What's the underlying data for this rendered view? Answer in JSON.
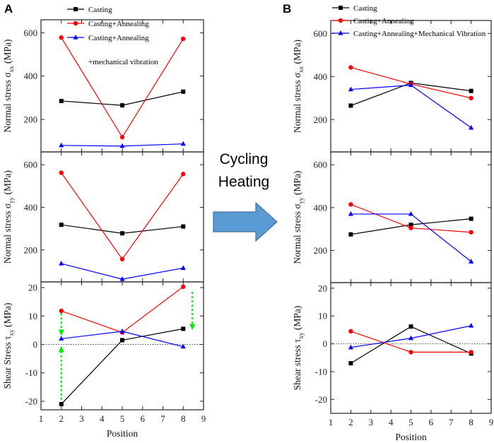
{
  "panel_labels": [
    "A",
    "B"
  ],
  "arrow": {
    "label_line1": "Cycling",
    "label_line2": "Heating",
    "color": "#5b9bd5"
  },
  "colors": {
    "casting": "#000000",
    "annealing": "#ff0000",
    "vibration": "#0000ff",
    "indicator": "#00ee00"
  },
  "chart_data": [
    {
      "panel": "A",
      "type": "line",
      "xlim": [
        1,
        9
      ],
      "xticks": [
        1,
        2,
        3,
        4,
        5,
        6,
        7,
        8,
        9
      ],
      "xlabel": "Position",
      "legend": [
        "Casting",
        "Casting+Annealing",
        "Casting+Annealing",
        "+mechanical vibration"
      ],
      "subplots": [
        {
          "ylabel_main": "Normal stress σ",
          "ylabel_sub": "xx",
          "ylabel_unit": " (MPa)",
          "ylim": [
            50,
            660
          ],
          "yticks": [
            200,
            400,
            600
          ],
          "x": [
            2,
            5,
            8
          ],
          "series": [
            {
              "name": "Casting",
              "values": [
                285,
                265,
                328
              ],
              "marker": "square"
            },
            {
              "name": "Casting+Annealing",
              "values": [
                578,
                118,
                572
              ],
              "marker": "circle"
            },
            {
              "name": "Casting+Annealing+mechanical vibration",
              "values": [
                80,
                77,
                87
              ],
              "marker": "triangle"
            }
          ]
        },
        {
          "ylabel_main": "Normal stress σ",
          "ylabel_sub": "yy",
          "ylabel_unit": " (MPa)",
          "ylim": [
            50,
            660
          ],
          "yticks": [
            200,
            400,
            600
          ],
          "x": [
            2,
            5,
            8
          ],
          "series": [
            {
              "name": "Casting",
              "values": [
                318,
                278,
                310
              ],
              "marker": "square"
            },
            {
              "name": "Casting+Annealing",
              "values": [
                562,
                157,
                556
              ],
              "marker": "circle"
            },
            {
              "name": "Casting+Annealing+mechanical vibration",
              "values": [
                136,
                63,
                115
              ],
              "marker": "triangle"
            }
          ]
        },
        {
          "ylabel_main": "Shear Stress τ",
          "ylabel_sub": "xy",
          "ylabel_unit": " (MPa)",
          "ylim": [
            -23,
            22
          ],
          "yticks": [
            -20,
            -10,
            0,
            10,
            20
          ],
          "x": [
            2,
            5,
            8
          ],
          "zero_line": true,
          "series": [
            {
              "name": "Casting",
              "values": [
                -21,
                1.5,
                5.5
              ],
              "marker": "square"
            },
            {
              "name": "Casting+Annealing",
              "values": [
                11.8,
                4.2,
                20.3
              ],
              "marker": "circle"
            },
            {
              "name": "Casting+Annealing+mechanical vibration",
              "values": [
                2.0,
                4.6,
                -0.8
              ],
              "marker": "triangle"
            }
          ],
          "indicators": [
            {
              "x": 2,
              "from": -19.5,
              "to": -0.5
            },
            {
              "x": 2,
              "from": 11,
              "to": 3
            },
            {
              "x": 8.45,
              "from": 18.5,
              "to": 5
            }
          ]
        }
      ]
    },
    {
      "panel": "B",
      "type": "line",
      "xlim": [
        1,
        9
      ],
      "xticks": [
        1,
        2,
        3,
        4,
        5,
        6,
        7,
        8,
        9
      ],
      "xlabel": "Position",
      "legend": [
        "Casting",
        "Casting+Annealing",
        "Casting+Annealing+Mechanical Vibration"
      ],
      "subplots": [
        {
          "ylabel_main": "Normal stress σ",
          "ylabel_sub": "xx",
          "ylabel_unit": " (MPa)",
          "ylim": [
            50,
            660
          ],
          "yticks": [
            200,
            400,
            600
          ],
          "x": [
            2,
            5,
            8
          ],
          "series": [
            {
              "name": "Casting",
              "values": [
                265,
                370,
                333
              ],
              "marker": "square"
            },
            {
              "name": "Casting+Annealing",
              "values": [
                442,
                365,
                300
              ],
              "marker": "circle"
            },
            {
              "name": "Casting+Annealing+Mechanical Vibration",
              "values": [
                340,
                360,
                162
              ],
              "marker": "triangle"
            }
          ]
        },
        {
          "ylabel_main": "Normal stress σ",
          "ylabel_sub": "yy",
          "ylabel_unit": " (MPa)",
          "ylim": [
            50,
            660
          ],
          "yticks": [
            200,
            400,
            600
          ],
          "x": [
            2,
            5,
            8
          ],
          "series": [
            {
              "name": "Casting",
              "values": [
                275,
                320,
                348
              ],
              "marker": "square"
            },
            {
              "name": "Casting+Annealing",
              "values": [
                415,
                305,
                285
              ],
              "marker": "circle"
            },
            {
              "name": "Casting+Annealing+Mechanical Vibration",
              "values": [
                370,
                370,
                148
              ],
              "marker": "triangle"
            }
          ]
        },
        {
          "ylabel_main": "Shear stress τ",
          "ylabel_sub": "xy",
          "ylabel_unit": " (MPa)",
          "ylim": [
            -25,
            22
          ],
          "yticks": [
            -20,
            -10,
            0,
            10,
            20
          ],
          "x": [
            2,
            5,
            8
          ],
          "zero_line": true,
          "series": [
            {
              "name": "Casting",
              "values": [
                -7,
                6.2,
                -3.5
              ],
              "marker": "square"
            },
            {
              "name": "Casting+Annealing",
              "values": [
                4.5,
                -3.0,
                -3.0
              ],
              "marker": "circle"
            },
            {
              "name": "Casting+Annealing+Mechanical Vibration",
              "values": [
                -1.3,
                2.0,
                6.5
              ],
              "marker": "triangle"
            }
          ]
        }
      ]
    }
  ]
}
